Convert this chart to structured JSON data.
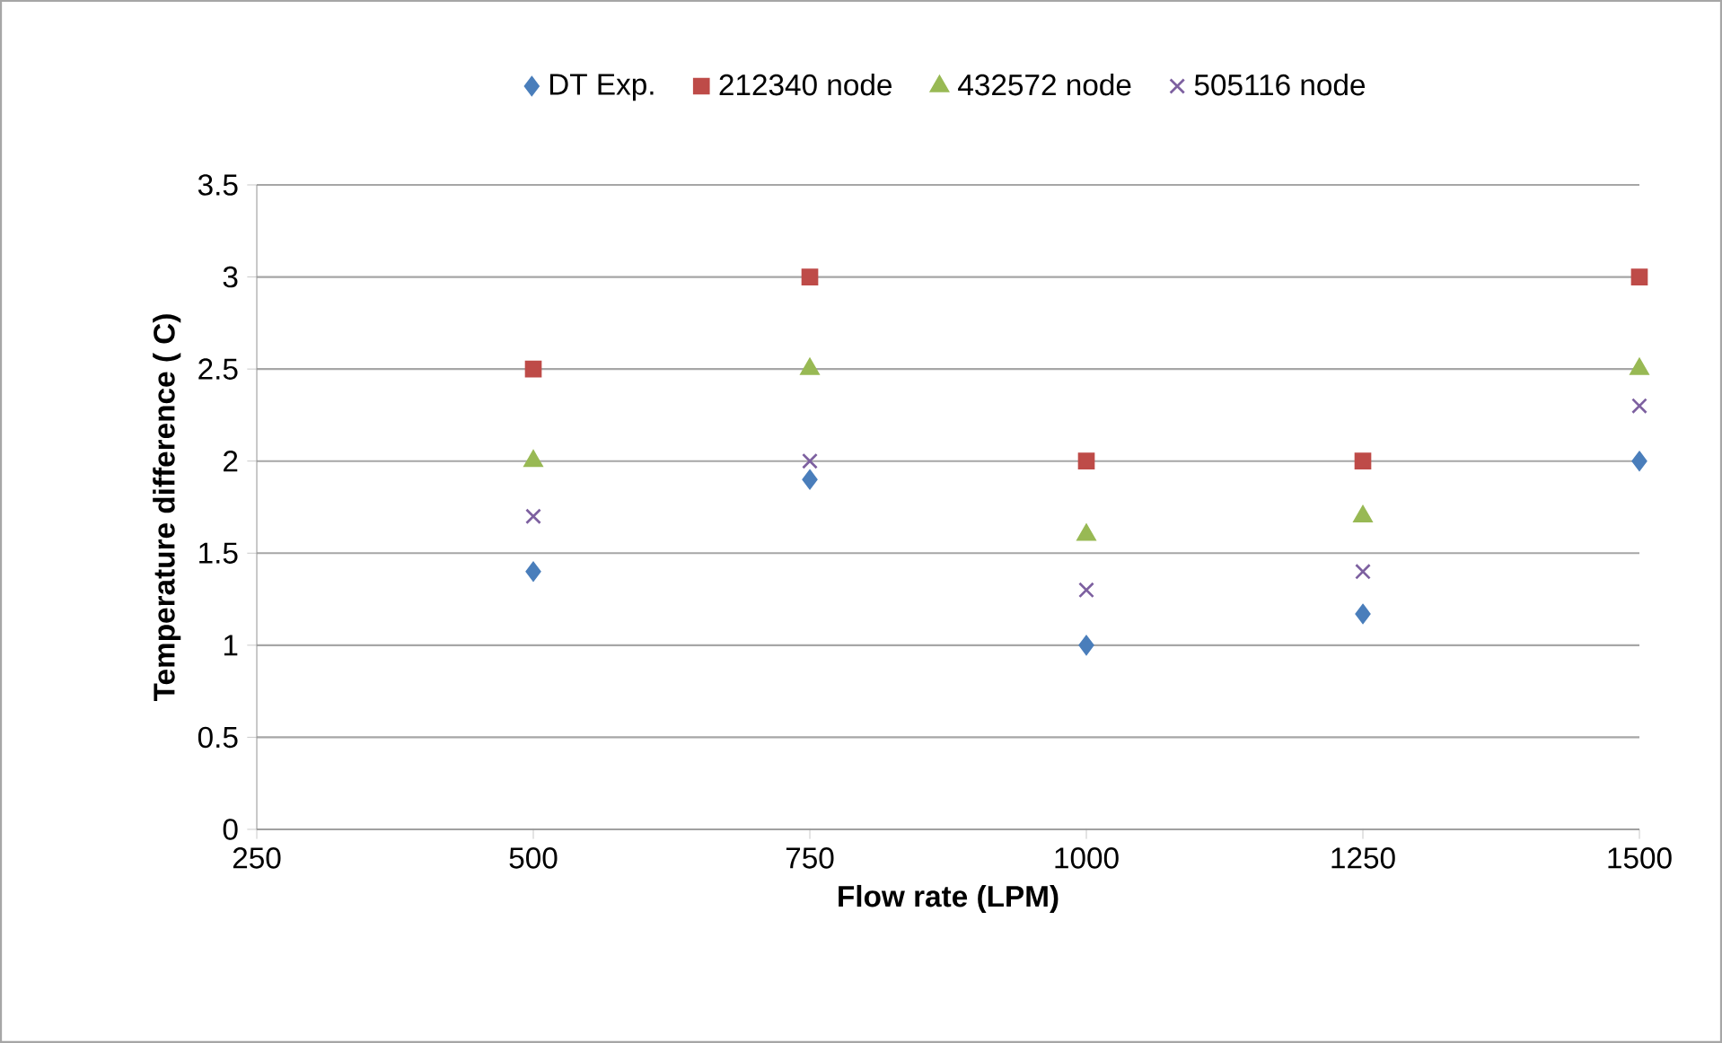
{
  "chart_data": {
    "type": "scatter",
    "xlabel": "Flow rate (LPM)",
    "ylabel": "Temperature difference ( C)",
    "x": [
      500,
      750,
      1000,
      1250,
      1500
    ],
    "series": [
      {
        "name": "DT Exp.",
        "color": "#4a7ebb",
        "marker": "diamond",
        "values": [
          1.4,
          1.9,
          1.0,
          1.17,
          2.0
        ]
      },
      {
        "name": "212340 node",
        "color": "#be4b48",
        "marker": "square",
        "values": [
          2.5,
          3,
          2,
          2,
          3
        ]
      },
      {
        "name": "432572 node",
        "color": "#98b954",
        "marker": "triangle",
        "values": [
          2.0,
          2.5,
          1.6,
          1.7,
          2.5
        ]
      },
      {
        "name": "505116 node",
        "color": "#7d60a0",
        "marker": "cross",
        "values": [
          1.7,
          2.0,
          1.3,
          1.4,
          2.3
        ]
      }
    ],
    "xlim": [
      250,
      1500
    ],
    "xticks": [
      250,
      500,
      750,
      1000,
      1250,
      1500
    ],
    "ylim": [
      0,
      3.5
    ],
    "yticks": [
      0,
      0.5,
      1,
      1.5,
      2,
      2.5,
      3,
      3.5
    ],
    "grid": "y",
    "legend": "top"
  }
}
